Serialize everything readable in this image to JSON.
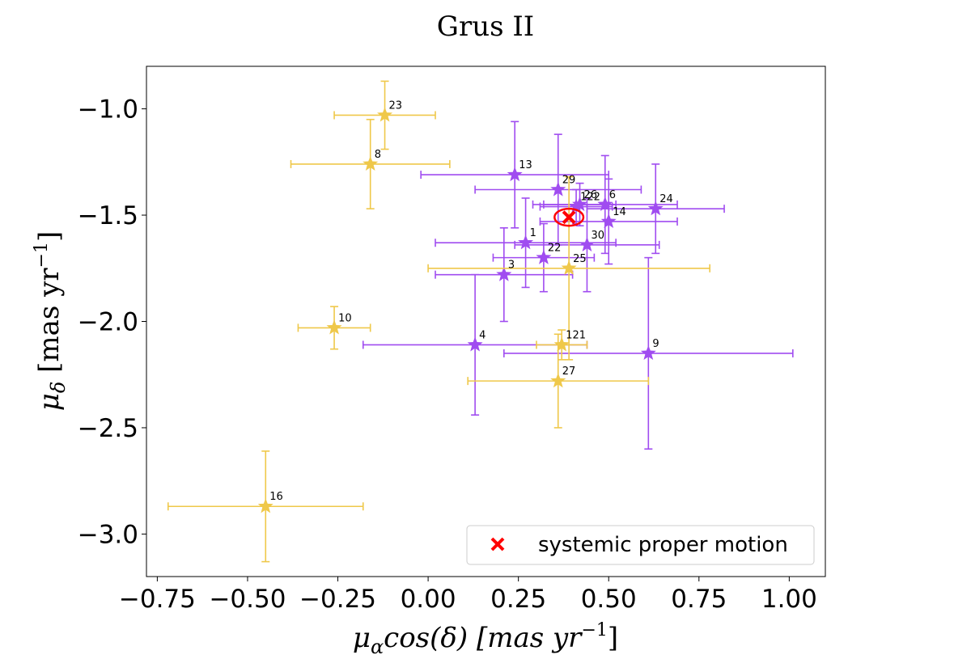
{
  "chart_data": {
    "type": "scatter",
    "title": "Grus II",
    "xlabel": {
      "symbol": "μ",
      "sub": "α",
      "rest": "cos(δ) [mas yr",
      "sup": "−1",
      "end": "]"
    },
    "ylabel": {
      "symbol": "μ",
      "sub": "δ",
      "rest": " [mas yr",
      "sup": "−1",
      "end": "]"
    },
    "xlim": [
      -0.78,
      1.1
    ],
    "ylim": [
      -3.2,
      -0.8
    ],
    "xticks": [
      -0.75,
      -0.5,
      -0.25,
      0.0,
      0.25,
      0.5,
      0.75,
      1.0
    ],
    "xtick_labels": [
      "−0.75",
      "−0.50",
      "−0.25",
      "0.00",
      "0.25",
      "0.50",
      "0.75",
      "1.00"
    ],
    "yticks": [
      -1.0,
      -1.5,
      -2.0,
      -2.5,
      -3.0
    ],
    "ytick_labels": [
      "−1.0",
      "−1.5",
      "−2.0",
      "−2.5",
      "−3.0"
    ],
    "colors": {
      "purple": "#a04cf0",
      "yellow": "#efc84a",
      "systemic": "#ff0000"
    },
    "series": [
      {
        "name": "purple stars",
        "color": "#a04cf0",
        "points": [
          {
            "id": "13",
            "x": 0.24,
            "y": -1.31,
            "xerr": 0.26,
            "yerr": 0.25
          },
          {
            "id": "29",
            "x": 0.36,
            "y": -1.38,
            "xerr": 0.23,
            "yerr": 0.26
          },
          {
            "id": "26",
            "x": 0.42,
            "y": -1.45,
            "xerr": 0.1,
            "yerr": 0.1
          },
          {
            "id": "122",
            "x": 0.41,
            "y": -1.46,
            "xerr": 0.1,
            "yerr": 0.08
          },
          {
            "id": "6",
            "x": 0.49,
            "y": -1.45,
            "xerr": 0.2,
            "yerr": 0.23
          },
          {
            "id": "24",
            "x": 0.63,
            "y": -1.47,
            "xerr": 0.19,
            "yerr": 0.21
          },
          {
            "id": "14",
            "x": 0.5,
            "y": -1.53,
            "xerr": 0.19,
            "yerr": 0.2
          },
          {
            "id": "1",
            "x": 0.27,
            "y": -1.63,
            "xerr": 0.25,
            "yerr": 0.21
          },
          {
            "id": "30",
            "x": 0.44,
            "y": -1.64,
            "xerr": 0.2,
            "yerr": 0.22
          },
          {
            "id": "22",
            "x": 0.32,
            "y": -1.7,
            "xerr": 0.14,
            "yerr": 0.16
          },
          {
            "id": "3",
            "x": 0.21,
            "y": -1.78,
            "xerr": 0.19,
            "yerr": 0.22
          },
          {
            "id": "4",
            "x": 0.13,
            "y": -2.11,
            "xerr": 0.31,
            "yerr": 0.33
          },
          {
            "id": "9",
            "x": 0.61,
            "y": -2.15,
            "xerr": 0.4,
            "yerr": 0.45
          }
        ]
      },
      {
        "name": "yellow stars",
        "color": "#efc84a",
        "points": [
          {
            "id": "23",
            "x": -0.12,
            "y": -1.03,
            "xerr": 0.14,
            "yerr": 0.16
          },
          {
            "id": "8",
            "x": -0.16,
            "y": -1.26,
            "xerr": 0.22,
            "yerr": 0.21
          },
          {
            "id": "25",
            "x": 0.39,
            "y": -1.75,
            "xerr": 0.39,
            "yerr": 0.43
          },
          {
            "id": "10",
            "x": -0.26,
            "y": -2.03,
            "xerr": 0.1,
            "yerr": 0.1
          },
          {
            "id": "121",
            "x": 0.37,
            "y": -2.11,
            "xerr": 0.07,
            "yerr": 0.07
          },
          {
            "id": "27",
            "x": 0.36,
            "y": -2.28,
            "xerr": 0.25,
            "yerr": 0.22
          },
          {
            "id": "16",
            "x": -0.45,
            "y": -2.87,
            "xerr": 0.27,
            "yerr": 0.26
          }
        ]
      }
    ],
    "systemic": {
      "label": "systemic proper motion",
      "x": 0.39,
      "y": -1.51,
      "ellipse_rx": 0.04,
      "ellipse_ry": 0.04
    },
    "legend": {
      "position": "lower-right",
      "entries": [
        "systemic proper motion"
      ]
    }
  }
}
